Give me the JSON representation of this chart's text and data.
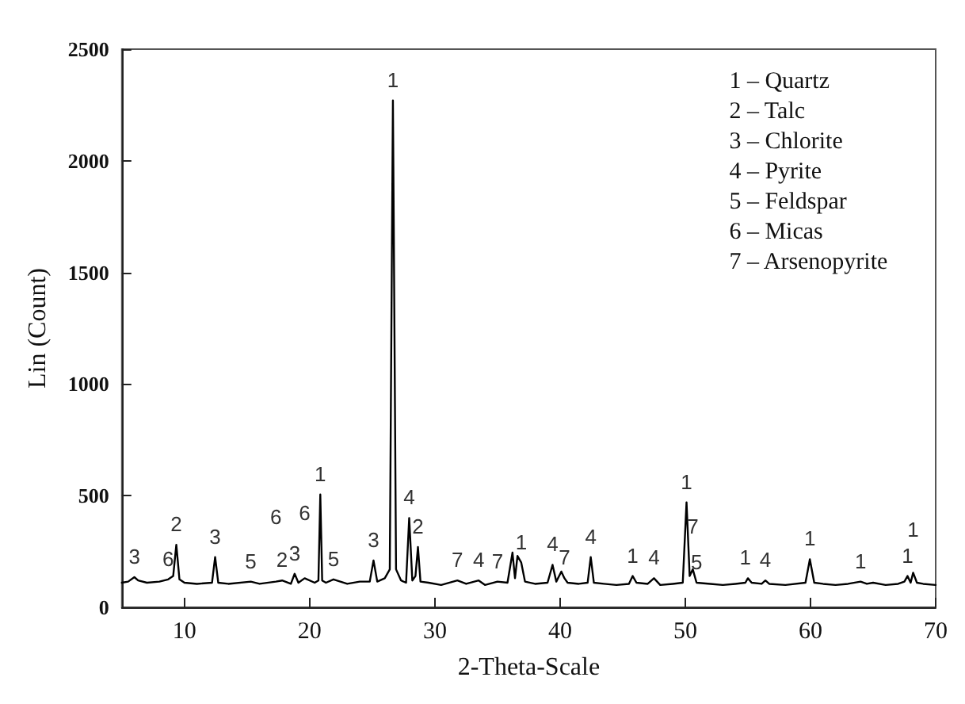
{
  "chart_data": {
    "type": "line",
    "xlabel": "2-Theta-Scale",
    "ylabel": "Lin (Count)",
    "x": [
      5,
      5.5,
      6,
      6.3,
      7,
      8,
      8.7,
      9.1,
      9.35,
      9.6,
      10,
      11,
      12.2,
      12.45,
      12.7,
      13.5,
      15.3,
      16,
      17.3,
      17.8,
      18.5,
      18.8,
      19.1,
      19.6,
      20.4,
      20.7,
      20.85,
      21,
      21.3,
      21.9,
      23,
      24,
      24.8,
      25.1,
      25.4,
      26,
      26.4,
      26.65,
      26.9,
      27.3,
      27.7,
      27.95,
      28.2,
      28.45,
      28.65,
      28.85,
      29.5,
      30.5,
      31.8,
      32.5,
      33.5,
      34,
      35,
      35.8,
      36.2,
      36.4,
      36.6,
      36.9,
      37.2,
      38,
      39,
      39.4,
      39.7,
      40.1,
      40.35,
      40.6,
      41.5,
      42.2,
      42.45,
      42.7,
      43.5,
      44.5,
      45.5,
      45.8,
      46.1,
      47,
      47.5,
      48,
      49,
      49.8,
      50.1,
      50.35,
      50.6,
      50.9,
      52,
      53,
      54,
      54.8,
      55,
      55.3,
      56.1,
      56.4,
      56.7,
      58,
      59.6,
      59.95,
      60.3,
      61,
      62,
      63,
      64,
      64.5,
      65,
      66,
      67,
      67.5,
      67.75,
      68,
      68.2,
      68.5,
      69,
      70
    ],
    "series": [
      {
        "color": "#000000",
        "values": [
          110,
          115,
          135,
          120,
          110,
          115,
          125,
          140,
          280,
          125,
          110,
          105,
          110,
          225,
          110,
          105,
          115,
          105,
          115,
          120,
          105,
          150,
          110,
          130,
          110,
          120,
          505,
          120,
          110,
          125,
          105,
          115,
          115,
          210,
          115,
          130,
          170,
          2270,
          170,
          120,
          110,
          400,
          120,
          140,
          270,
          115,
          110,
          100,
          120,
          105,
          120,
          100,
          115,
          110,
          245,
          130,
          230,
          200,
          115,
          105,
          110,
          190,
          115,
          160,
          130,
          110,
          105,
          110,
          225,
          110,
          105,
          100,
          105,
          140,
          110,
          105,
          130,
          100,
          105,
          110,
          470,
          140,
          170,
          110,
          105,
          100,
          105,
          110,
          130,
          110,
          105,
          120,
          105,
          100,
          110,
          215,
          110,
          105,
          100,
          105,
          115,
          105,
          110,
          100,
          105,
          115,
          140,
          110,
          155,
          110,
          105,
          100
        ]
      }
    ],
    "xlim": [
      5,
      70
    ],
    "xticks": [
      10,
      20,
      30,
      40,
      50,
      60,
      70
    ],
    "ylim": [
      0,
      2500
    ],
    "yticks": [
      0,
      500,
      1000,
      1500,
      2000,
      2500
    ],
    "line_style": "solid",
    "marker": "none",
    "grid": false,
    "annotations": [
      "1 – Quartz",
      "2 – Talc",
      "3 – Chlorite",
      "4 – Pyrite",
      "5 – Feldspar",
      "6 – Micas",
      "7 – Arsenopyrite",
      {
        "text": "3",
        "x": 6,
        "y": 135
      },
      {
        "text": "6",
        "x": 8.7,
        "y": 125
      },
      {
        "text": "2",
        "x": 9.35,
        "y": 280
      },
      {
        "text": "3",
        "x": 12.45,
        "y": 225
      },
      {
        "text": "5",
        "x": 15.3,
        "y": 115
      },
      {
        "text": "2",
        "x": 17.8,
        "y": 120
      },
      {
        "text": "6",
        "x": 17.3,
        "y": 115
      },
      {
        "text": "3",
        "x": 18.8,
        "y": 150
      },
      {
        "text": "6",
        "x": 19.6,
        "y": 130
      },
      {
        "text": "1",
        "x": 20.85,
        "y": 505
      },
      {
        "text": "5",
        "x": 21.9,
        "y": 125
      },
      {
        "text": "3",
        "x": 25.1,
        "y": 210
      },
      {
        "text": "1",
        "x": 26.65,
        "y": 2270
      },
      {
        "text": "4",
        "x": 27.95,
        "y": 400
      },
      {
        "text": "2",
        "x": 28.65,
        "y": 270
      },
      {
        "text": "7",
        "x": 31.8,
        "y": 120
      },
      {
        "text": "4",
        "x": 33.5,
        "y": 120
      },
      {
        "text": "7",
        "x": 35,
        "y": 115
      },
      {
        "text": "1",
        "x": 36.9,
        "y": 200
      },
      {
        "text": "4",
        "x": 39.4,
        "y": 190
      },
      {
        "text": "7",
        "x": 40.35,
        "y": 130
      },
      {
        "text": "4",
        "x": 42.45,
        "y": 225
      },
      {
        "text": "1",
        "x": 45.8,
        "y": 140
      },
      {
        "text": "4",
        "x": 47.5,
        "y": 130
      },
      {
        "text": "1",
        "x": 50.1,
        "y": 470
      },
      {
        "text": "5",
        "x": 50.9,
        "y": 110
      },
      {
        "text": "7",
        "x": 50.6,
        "y": 170
      },
      {
        "text": "1",
        "x": 54.8,
        "y": 130
      },
      {
        "text": "4",
        "x": 56.4,
        "y": 120
      },
      {
        "text": "1",
        "x": 59.95,
        "y": 215
      },
      {
        "text": "1",
        "x": 64,
        "y": 115
      },
      {
        "text": "1",
        "x": 67.75,
        "y": 140
      },
      {
        "text": "1",
        "x": 68.2,
        "y": 155
      }
    ]
  }
}
